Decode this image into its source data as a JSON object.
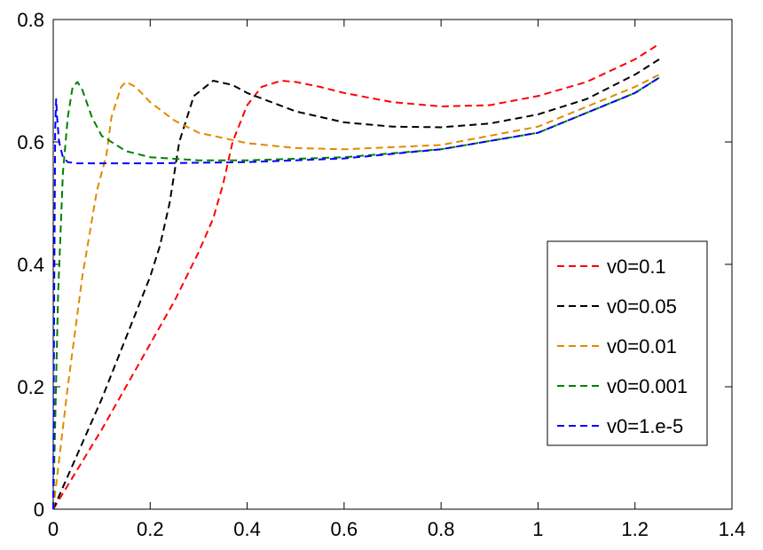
{
  "chart_data": {
    "type": "line",
    "title": "",
    "xlabel": "",
    "ylabel": "",
    "xlim": [
      0,
      1.4
    ],
    "ylim": [
      0,
      0.8
    ],
    "xticks": [
      "0",
      "0.2",
      "0.4",
      "0.6",
      "0.8",
      "1",
      "1.2",
      "1.4"
    ],
    "yticks": [
      "0",
      "0.2",
      "0.4",
      "0.6",
      "0.8"
    ],
    "grid": false,
    "legend_position": "center-right",
    "line_style": "dashed",
    "series": [
      {
        "name": "v0=0.1",
        "color": "#ff0000",
        "x": [
          0,
          0.05,
          0.1,
          0.15,
          0.2,
          0.25,
          0.3,
          0.33,
          0.35,
          0.37,
          0.4,
          0.43,
          0.47,
          0.5,
          0.55,
          0.6,
          0.7,
          0.8,
          0.9,
          1.0,
          1.1,
          1.2,
          1.25
        ],
        "y": [
          0,
          0.065,
          0.13,
          0.2,
          0.27,
          0.34,
          0.42,
          0.475,
          0.53,
          0.6,
          0.66,
          0.69,
          0.7,
          0.698,
          0.69,
          0.68,
          0.665,
          0.658,
          0.66,
          0.675,
          0.698,
          0.735,
          0.76
        ]
      },
      {
        "name": "v0=0.05",
        "color": "#000000",
        "x": [
          0,
          0.05,
          0.1,
          0.15,
          0.2,
          0.22,
          0.24,
          0.26,
          0.29,
          0.33,
          0.37,
          0.4,
          0.5,
          0.6,
          0.7,
          0.8,
          0.9,
          1.0,
          1.1,
          1.2,
          1.25
        ],
        "y": [
          0,
          0.09,
          0.18,
          0.28,
          0.38,
          0.43,
          0.5,
          0.6,
          0.675,
          0.7,
          0.693,
          0.68,
          0.65,
          0.632,
          0.625,
          0.624,
          0.63,
          0.645,
          0.67,
          0.71,
          0.735
        ]
      },
      {
        "name": "v0=0.01",
        "color": "#e08a00",
        "x": [
          0,
          0.03,
          0.06,
          0.09,
          0.11,
          0.12,
          0.14,
          0.15,
          0.17,
          0.2,
          0.25,
          0.3,
          0.4,
          0.5,
          0.6,
          0.8,
          1.0,
          1.2,
          1.25
        ],
        "y": [
          0,
          0.2,
          0.38,
          0.52,
          0.58,
          0.64,
          0.69,
          0.698,
          0.69,
          0.665,
          0.635,
          0.615,
          0.598,
          0.59,
          0.588,
          0.595,
          0.625,
          0.69,
          0.71
        ]
      },
      {
        "name": "v0=0.001",
        "color": "#008000",
        "x": [
          0,
          0.01,
          0.02,
          0.03,
          0.04,
          0.05,
          0.06,
          0.08,
          0.1,
          0.15,
          0.2,
          0.3,
          0.4,
          0.6,
          0.8,
          1.0,
          1.2,
          1.25
        ],
        "y": [
          0,
          0.35,
          0.55,
          0.64,
          0.69,
          0.698,
          0.685,
          0.64,
          0.61,
          0.585,
          0.575,
          0.57,
          0.57,
          0.575,
          0.588,
          0.615,
          0.68,
          0.705
        ]
      },
      {
        "name": "v0=1.e-5",
        "color": "#0000ff",
        "x": [
          0,
          0.002,
          0.004,
          0.006,
          0.008,
          0.012,
          0.02,
          0.03,
          0.05,
          0.1,
          0.2,
          0.4,
          0.6,
          0.8,
          1.0,
          1.2,
          1.25
        ],
        "y": [
          0,
          0.35,
          0.62,
          0.67,
          0.64,
          0.6,
          0.575,
          0.567,
          0.565,
          0.565,
          0.565,
          0.567,
          0.573,
          0.588,
          0.615,
          0.68,
          0.705
        ]
      }
    ]
  }
}
